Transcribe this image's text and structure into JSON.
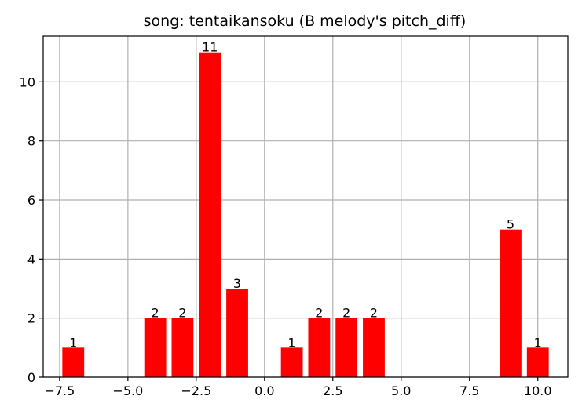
{
  "chart_data": {
    "type": "bar",
    "title": "song: tentaikansoku (B melody's pitch_diff)",
    "xlabel": "",
    "ylabel": "",
    "x": [
      -7,
      -4,
      -3,
      -2,
      -1,
      1,
      2,
      3,
      4,
      9,
      10
    ],
    "values": [
      1,
      2,
      2,
      11,
      3,
      1,
      2,
      2,
      2,
      5,
      1
    ],
    "bar_width": 0.8,
    "bar_color": "#ff0000",
    "xlim": [
      -8.1,
      11.1
    ],
    "ylim": [
      0,
      11.55
    ],
    "xticks": [
      -7.5,
      -5.0,
      -2.5,
      0.0,
      2.5,
      5.0,
      7.5,
      10.0
    ],
    "xtick_labels": [
      "−7.5",
      "−5.0",
      "−2.5",
      "0.0",
      "2.5",
      "5.0",
      "7.5",
      "10.0"
    ],
    "yticks": [
      0,
      2,
      4,
      6,
      8,
      10
    ],
    "ytick_labels": [
      "0",
      "2",
      "4",
      "6",
      "8",
      "10"
    ],
    "grid": true
  }
}
